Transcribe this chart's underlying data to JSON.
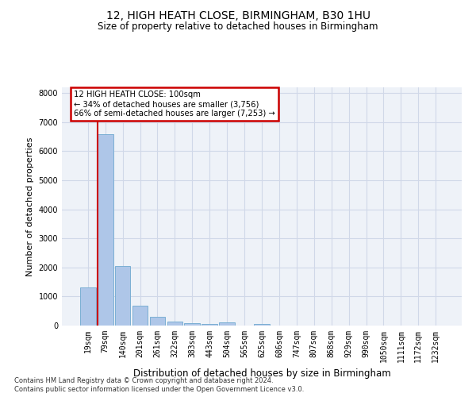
{
  "title1": "12, HIGH HEATH CLOSE, BIRMINGHAM, B30 1HU",
  "title2": "Size of property relative to detached houses in Birmingham",
  "xlabel": "Distribution of detached houses by size in Birmingham",
  "ylabel": "Number of detached properties",
  "categories": [
    "19sqm",
    "79sqm",
    "140sqm",
    "201sqm",
    "261sqm",
    "322sqm",
    "383sqm",
    "443sqm",
    "504sqm",
    "565sqm",
    "625sqm",
    "686sqm",
    "747sqm",
    "807sqm",
    "868sqm",
    "929sqm",
    "990sqm",
    "1050sqm",
    "1111sqm",
    "1172sqm",
    "1232sqm"
  ],
  "values": [
    1300,
    6600,
    2050,
    680,
    290,
    150,
    80,
    50,
    100,
    0,
    60,
    0,
    0,
    0,
    0,
    0,
    0,
    0,
    0,
    0,
    0
  ],
  "bar_color": "#aec6e8",
  "bar_edge_color": "#7bafd4",
  "grid_color": "#d0d8e8",
  "bg_color": "#eef2f8",
  "vline_color": "#cc0000",
  "box_text_line1": "12 HIGH HEATH CLOSE: 100sqm",
  "box_text_line2": "← 34% of detached houses are smaller (3,756)",
  "box_text_line3": "66% of semi-detached houses are larger (7,253) →",
  "box_color": "#cc0000",
  "ylim": [
    0,
    8200
  ],
  "yticks": [
    0,
    1000,
    2000,
    3000,
    4000,
    5000,
    6000,
    7000,
    8000
  ],
  "footnote1": "Contains HM Land Registry data © Crown copyright and database right 2024.",
  "footnote2": "Contains public sector information licensed under the Open Government Licence v3.0."
}
